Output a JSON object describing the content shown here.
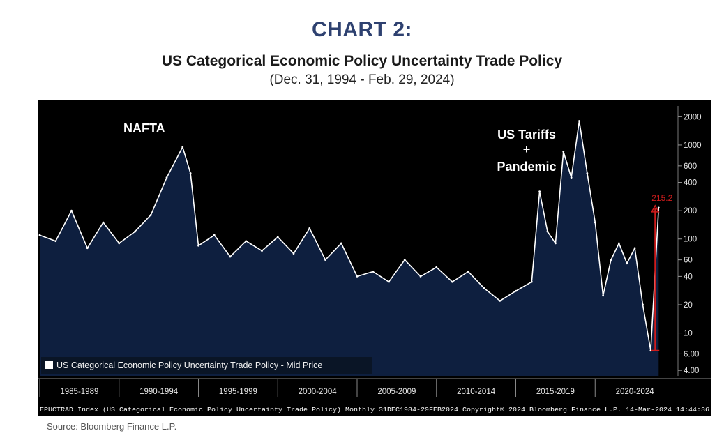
{
  "heading": {
    "chart_number": "CHART 2:",
    "title": "US Categorical Economic Policy Uncertainty Trade Policy",
    "subtitle": "(Dec. 31, 1994 - Feb. 29, 2024)"
  },
  "source": "Source: Bloomberg Finance L.P.",
  "colors": {
    "background": "#000000",
    "area_fill": "#0e1f3f",
    "line": "#ffffff",
    "marker": "#d01c1c",
    "axis_label": "#e6e6e6"
  },
  "chart_data": {
    "type": "area",
    "series": [
      {
        "name": "US Categorical Economic Policy Uncertainty Trade Policy - Mid Price",
        "x": [
          "1985",
          "1986",
          "1987",
          "1988",
          "1989",
          "1990",
          "1991",
          "1992",
          "1993",
          "1994",
          "1994.5",
          "1995",
          "1996",
          "1997",
          "1998",
          "1999",
          "2000",
          "2001",
          "2002",
          "2003",
          "2004",
          "2005",
          "2006",
          "2007",
          "2008",
          "2009",
          "2010",
          "2011",
          "2012",
          "2013",
          "2014",
          "2015",
          "2016",
          "2016.5",
          "2017",
          "2017.5",
          "2018",
          "2018.5",
          "2019",
          "2019.5",
          "2020",
          "2020.5",
          "2021",
          "2021.5",
          "2022",
          "2022.5",
          "2023",
          "2023.5",
          "2024"
        ],
        "y": [
          110,
          95,
          200,
          80,
          150,
          90,
          120,
          180,
          450,
          950,
          500,
          85,
          110,
          65,
          95,
          75,
          105,
          70,
          130,
          60,
          90,
          40,
          45,
          35,
          60,
          40,
          50,
          35,
          45,
          30,
          22,
          28,
          35,
          320,
          120,
          90,
          850,
          450,
          1800,
          500,
          150,
          25,
          60,
          90,
          55,
          80,
          20,
          6.5,
          215.2
        ]
      }
    ],
    "x_tick_labels": [
      "1985-1989",
      "1990-1994",
      "1995-1999",
      "2000-2004",
      "2005-2009",
      "2010-2014",
      "2015-2019",
      "2020-2024"
    ],
    "y_tick_labels": [
      "2000",
      "1000",
      "600",
      "400",
      "200",
      "100",
      "60",
      "40",
      "20",
      "10",
      "6.00",
      "4.00"
    ],
    "y_scale": "log",
    "ylim": [
      3.5,
      2600
    ],
    "last_value_label": "215.2",
    "legend": "US Categorical Economic Policy Uncertainty Trade Policy - Mid Price",
    "legend_placement": "bottom-left",
    "annotations": [
      "NAFTA",
      "US Tariffs",
      "+",
      "Pandemic"
    ],
    "footer": "EPUCTRAD Index (US Categorical Economic Policy Uncertainty Trade Policy) Monthly 31DEC1984-29FEB2024 Copyright® 2024 Bloomberg Finance L.P. 14-Mar-2024 14:44:36",
    "grid": false
  }
}
